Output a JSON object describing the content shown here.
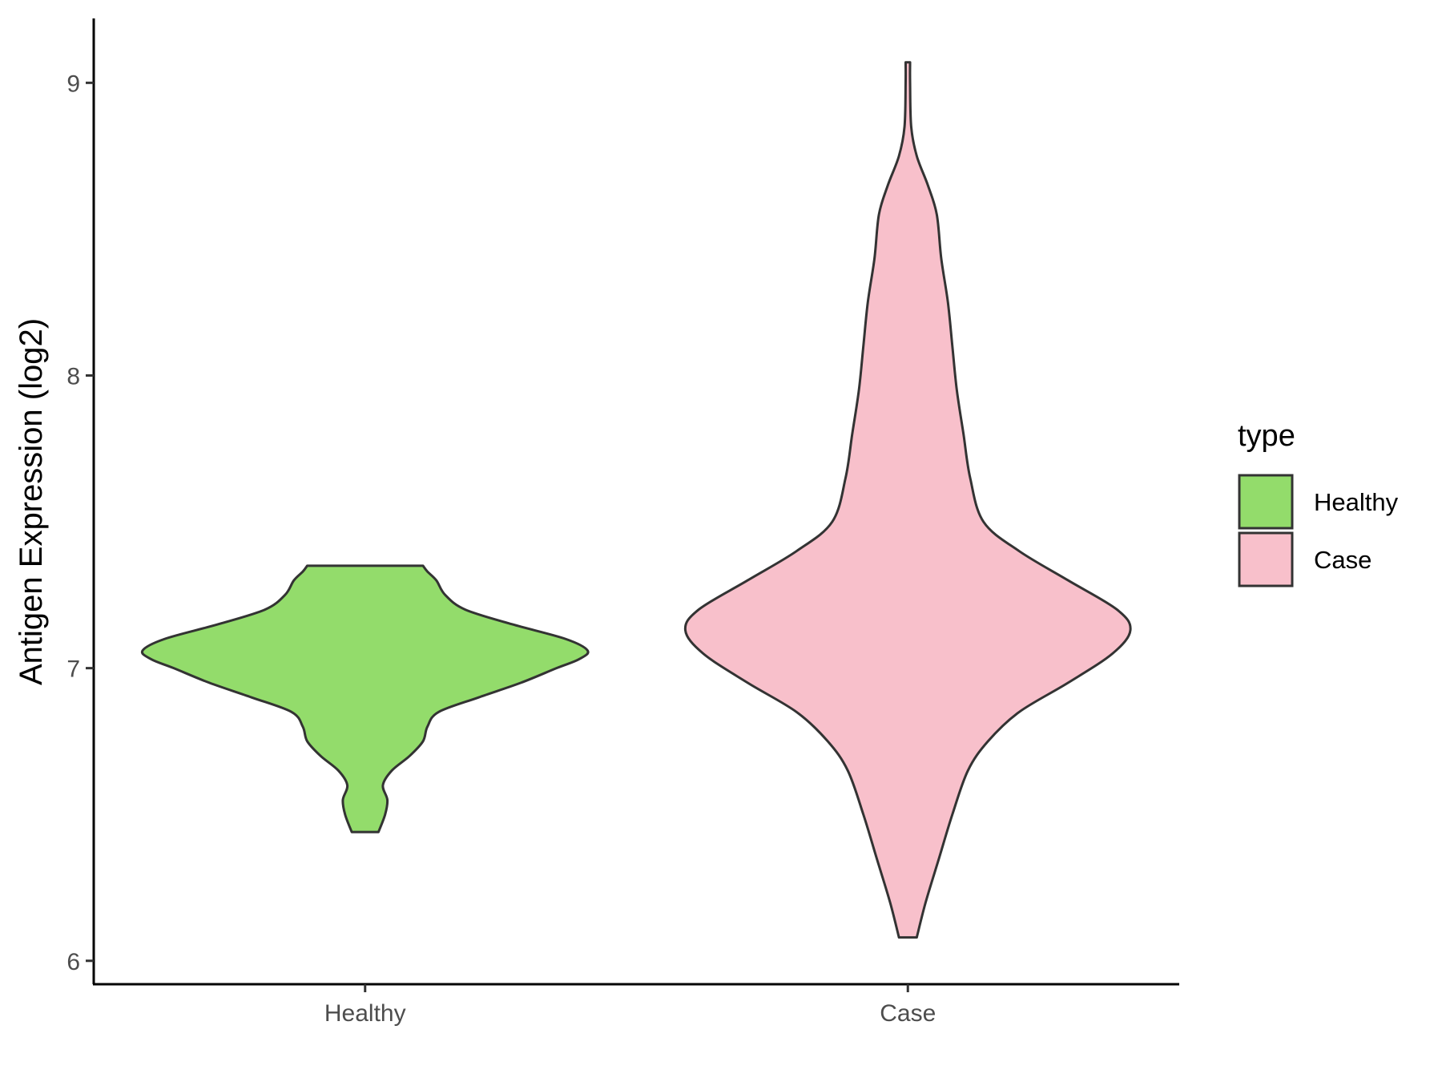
{
  "chart_data": {
    "type": "violin",
    "title": "",
    "xlabel": "",
    "ylabel": "Antigen Expression (log2)",
    "ylim": [
      5.92,
      9.22
    ],
    "yticks": [
      6,
      7,
      8,
      9
    ],
    "categories": [
      "Healthy",
      "Case"
    ],
    "grid": false,
    "legend": {
      "title": "type",
      "placement": "right",
      "entries": [
        {
          "label": "Healthy",
          "color": "#93dc6b"
        },
        {
          "label": "Case",
          "color": "#f8c0cb"
        }
      ]
    },
    "series": [
      {
        "name": "Healthy",
        "color": "#93dc6b",
        "min": 6.44,
        "max": 7.35,
        "density_profile": [
          [
            6.44,
            0.06
          ],
          [
            6.5,
            0.09
          ],
          [
            6.55,
            0.1
          ],
          [
            6.6,
            0.08
          ],
          [
            6.65,
            0.12
          ],
          [
            6.7,
            0.2
          ],
          [
            6.75,
            0.26
          ],
          [
            6.8,
            0.28
          ],
          [
            6.85,
            0.33
          ],
          [
            6.9,
            0.51
          ],
          [
            6.95,
            0.7
          ],
          [
            7.0,
            0.86
          ],
          [
            7.03,
            0.96
          ],
          [
            7.06,
            1.0
          ],
          [
            7.1,
            0.9
          ],
          [
            7.15,
            0.66
          ],
          [
            7.2,
            0.45
          ],
          [
            7.25,
            0.36
          ],
          [
            7.3,
            0.32
          ],
          [
            7.33,
            0.28
          ],
          [
            7.35,
            0.26
          ]
        ]
      },
      {
        "name": "Case",
        "color": "#f8c0cb",
        "min": 6.08,
        "max": 9.07,
        "density_profile": [
          [
            6.08,
            0.04
          ],
          [
            6.2,
            0.08
          ],
          [
            6.35,
            0.14
          ],
          [
            6.5,
            0.2
          ],
          [
            6.65,
            0.27
          ],
          [
            6.75,
            0.36
          ],
          [
            6.85,
            0.5
          ],
          [
            6.95,
            0.72
          ],
          [
            7.05,
            0.92
          ],
          [
            7.13,
            1.0
          ],
          [
            7.2,
            0.94
          ],
          [
            7.3,
            0.72
          ],
          [
            7.4,
            0.5
          ],
          [
            7.5,
            0.34
          ],
          [
            7.65,
            0.28
          ],
          [
            7.8,
            0.25
          ],
          [
            7.95,
            0.22
          ],
          [
            8.1,
            0.2
          ],
          [
            8.25,
            0.18
          ],
          [
            8.4,
            0.15
          ],
          [
            8.55,
            0.13
          ],
          [
            8.65,
            0.09
          ],
          [
            8.75,
            0.04
          ],
          [
            8.85,
            0.015
          ],
          [
            9.0,
            0.01
          ],
          [
            9.07,
            0.01
          ]
        ]
      }
    ]
  }
}
